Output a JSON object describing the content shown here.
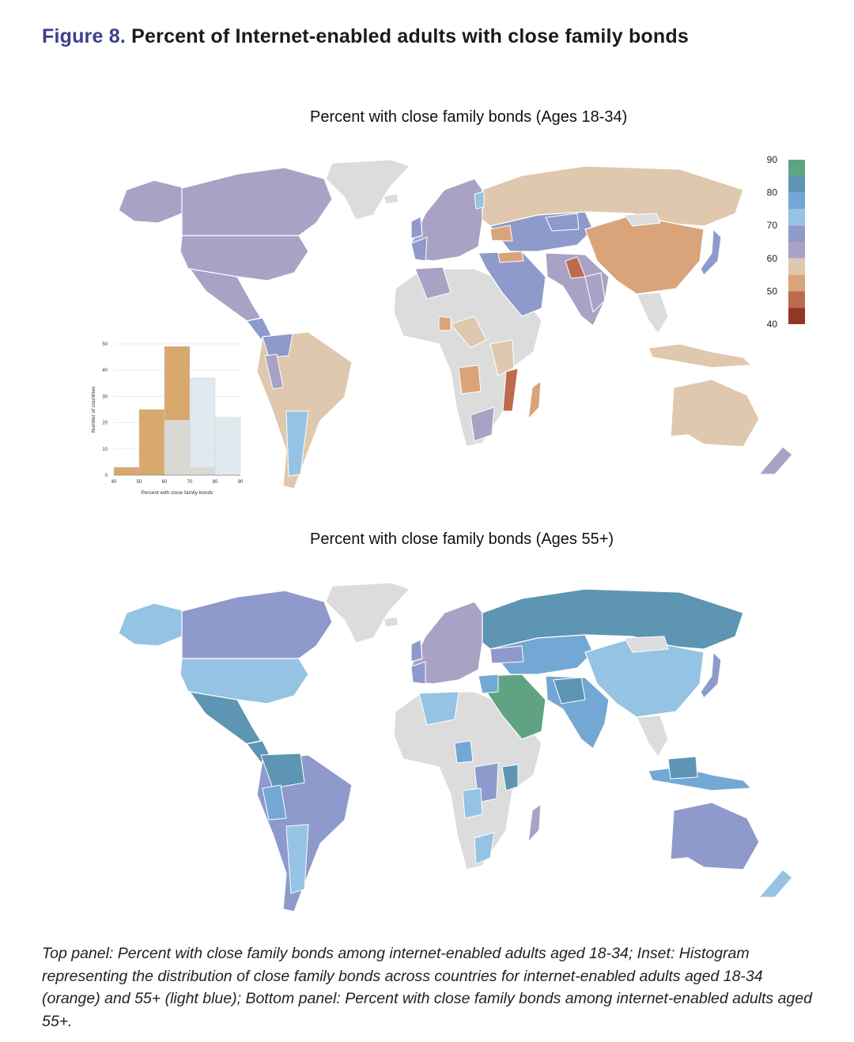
{
  "figure": {
    "label": "Figure 8.",
    "title": "Percent of Internet-enabled adults with close family bonds"
  },
  "maps": [
    {
      "id": "young",
      "title": "Percent with close family bonds (Ages 18-34)"
    },
    {
      "id": "old",
      "title": "Percent with close family bonds (Ages 55+)"
    }
  ],
  "legend": {
    "ticks": [
      "90",
      "80",
      "70",
      "60",
      "50",
      "40"
    ],
    "colors": [
      "#5fa382",
      "#5d95b3",
      "#73a8d4",
      "#95c3e3",
      "#8e9acb",
      "#aaa2c5",
      "#dfc8ad",
      "#d9a47a",
      "#bd6a4e",
      "#933527"
    ],
    "no_data_color": "#dcdcdc"
  },
  "histogram": {
    "xlabel": "Percent with close family bonds",
    "ylabel": "Number of countries",
    "x_ticks": [
      "40",
      "50",
      "60",
      "70",
      "80",
      "90"
    ],
    "y_ticks": [
      "0",
      "10",
      "20",
      "30",
      "40",
      "50"
    ],
    "ylim": [
      0,
      50
    ],
    "bins": [
      [
        40,
        50
      ],
      [
        50,
        60
      ],
      [
        60,
        70
      ],
      [
        70,
        80
      ],
      [
        80,
        90
      ]
    ],
    "series": [
      {
        "group": "18-34",
        "color": "#d9a86f",
        "values": [
          3,
          25,
          49,
          3,
          0
        ]
      },
      {
        "group": "55+",
        "color": "#d9e4ea",
        "values": [
          0,
          0,
          21,
          37,
          22
        ]
      }
    ]
  },
  "caption": "Top panel: Percent with close family bonds among internet-enabled adults aged 18-34; Inset: Histogram representing the distribution of close family bonds across countries for internet-enabled adults aged 18-34 (orange) and 55+ (light blue); Bottom panel: Percent with close family bonds among internet-enabled adults aged 55+."
}
